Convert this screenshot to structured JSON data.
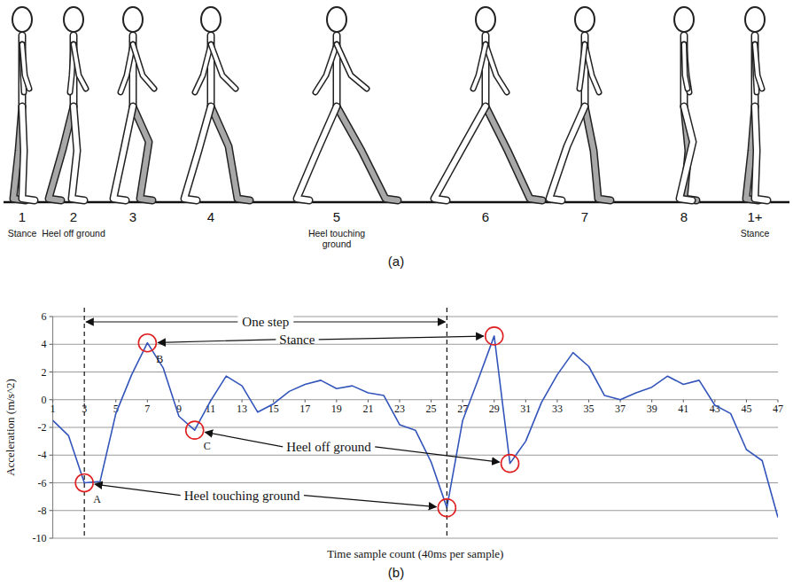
{
  "panel_a": {
    "caption": "(a)",
    "phases": [
      {
        "label": "1",
        "note": "Stance"
      },
      {
        "label": "2",
        "note": "Heel off ground"
      },
      {
        "label": "3"
      },
      {
        "label": "4"
      },
      {
        "label": "5",
        "note": "Heel touching ground"
      },
      {
        "label": "6"
      },
      {
        "label": "7"
      },
      {
        "label": "8"
      },
      {
        "label": "1+",
        "note": "Stance"
      }
    ]
  },
  "panel_b": {
    "caption": "(b)"
  },
  "chart_data": {
    "type": "line",
    "x_label": "Time sample count (40ms per sample)",
    "y_label": "Acceleration (m/s^2)",
    "x": [
      1,
      2,
      3,
      4,
      5,
      6,
      7,
      8,
      9,
      10,
      11,
      12,
      13,
      14,
      15,
      16,
      17,
      18,
      19,
      20,
      21,
      22,
      23,
      24,
      25,
      26,
      27,
      28,
      29,
      30,
      31,
      32,
      33,
      34,
      35,
      36,
      37,
      38,
      39,
      40,
      41,
      42,
      43,
      44,
      45,
      46,
      47
    ],
    "values": [
      -1.5,
      -2.6,
      -6.0,
      -5.9,
      -1.0,
      1.8,
      4.1,
      2.3,
      -1.2,
      -2.2,
      -0.1,
      1.7,
      1.0,
      -0.9,
      -0.3,
      0.6,
      1.1,
      1.4,
      0.8,
      1.0,
      0.5,
      0.3,
      -1.8,
      -2.2,
      -4.5,
      -7.8,
      -1.5,
      1.5,
      4.6,
      -4.6,
      -3.0,
      -0.2,
      1.8,
      3.4,
      2.4,
      0.3,
      0.0,
      0.5,
      0.9,
      1.7,
      1.1,
      1.4,
      -0.4,
      -1.0,
      -3.6,
      -4.4,
      -8.5
    ],
    "color": "#3355bb",
    "xlim": [
      1,
      47
    ],
    "xticks": [
      1,
      3,
      5,
      7,
      9,
      11,
      13,
      15,
      17,
      19,
      21,
      23,
      25,
      27,
      29,
      31,
      33,
      35,
      37,
      39,
      41,
      43,
      45,
      47
    ],
    "ylim": [
      -10,
      6
    ],
    "yticks": [
      -10,
      -8,
      -6,
      -4,
      -2,
      0,
      2,
      4,
      6
    ],
    "grid": true,
    "annotations": [
      {
        "text": "One step",
        "from": 3,
        "to": 26
      },
      {
        "text": "Stance",
        "targets": [
          7,
          29
        ],
        "point_labels": [
          "B",
          null
        ]
      },
      {
        "text": "Heel off ground",
        "targets": [
          10,
          30
        ],
        "point_labels": [
          "C",
          null
        ]
      },
      {
        "text": "Heel touching ground",
        "targets": [
          3,
          26
        ],
        "point_labels": [
          "A",
          null
        ]
      }
    ]
  }
}
